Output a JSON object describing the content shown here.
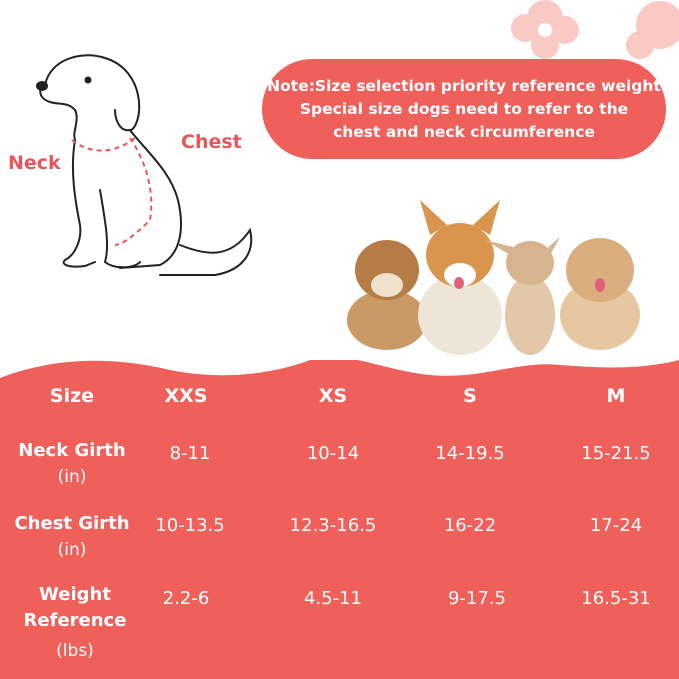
{
  "colors": {
    "accent": "#f0605b",
    "label": "#e9565a"
  },
  "note": {
    "lines": [
      "Note:Size selection priority reference weight",
      "Special size dogs need to refer to the",
      "chest and neck circumference"
    ]
  },
  "diagram": {
    "neck_label": "Neck",
    "chest_label": "Chest"
  },
  "table": {
    "header": {
      "label": "Size",
      "sizes": [
        "XXS",
        "XS",
        "S",
        "M"
      ]
    },
    "rows": [
      {
        "label": "Neck Girth",
        "unit": "(in)",
        "values": [
          "8-11",
          "10-14",
          "14-19.5",
          "15-21.5"
        ]
      },
      {
        "label": "Chest Girth",
        "unit": "(in)",
        "values": [
          "10-13.5",
          "12.3-16.5",
          "16-22",
          "17-24"
        ]
      },
      {
        "label": "Weight",
        "label2": "Reference",
        "unit": "(lbs)",
        "values": [
          "2.2-6",
          "4.5-11",
          "9-17.5",
          "16.5-31"
        ]
      }
    ]
  }
}
